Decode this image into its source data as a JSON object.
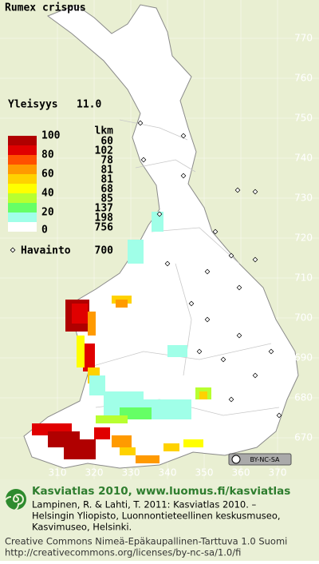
{
  "title": "Rumex crispus",
  "frequency": {
    "label": "Yleisyys",
    "value": "11.0"
  },
  "legend": {
    "count_header": "lkm",
    "percent_labels": [
      100,
      80,
      60,
      40,
      20,
      0
    ],
    "classes": [
      {
        "count": 60,
        "color": "#b00000"
      },
      {
        "count": 102,
        "color": "#e00000"
      },
      {
        "count": 78,
        "color": "#ff5000"
      },
      {
        "count": 81,
        "color": "#ff9a00"
      },
      {
        "count": 81,
        "color": "#ffd200"
      },
      {
        "count": 68,
        "color": "#ffff00"
      },
      {
        "count": 85,
        "color": "#b8ff30"
      },
      {
        "count": 137,
        "color": "#66ff66"
      },
      {
        "count": 198,
        "color": "#a0ffe8"
      },
      {
        "count": 756,
        "color": "#ffffff"
      }
    ]
  },
  "observations": {
    "label": "Havainto",
    "count": 700
  },
  "grid": {
    "north": [
      770,
      760,
      750,
      740,
      730,
      720,
      710,
      700,
      690,
      680,
      670
    ],
    "east": [
      310,
      320,
      330,
      340,
      350,
      360,
      370
    ]
  },
  "license_badge": "BY-NC-SA",
  "footer": {
    "heading": "Kasviatlas 2010, www.luomus.fi/kasviatlas",
    "citation": [
      "Lampinen, R. & Lahti, T. 2011: Kasviatlas 2010. –",
      "Helsingin Yliopisto, Luonnontieteellinen keskusmuseo,",
      "Kasvimuseo, Helsinki."
    ],
    "license": [
      "Creative Commons Nimeä-Epäkaupallinen-Tarttuva 1.0 Suomi",
      "http://creativecommons.org/licenses/by-nc-sa/1.0/fi"
    ]
  }
}
